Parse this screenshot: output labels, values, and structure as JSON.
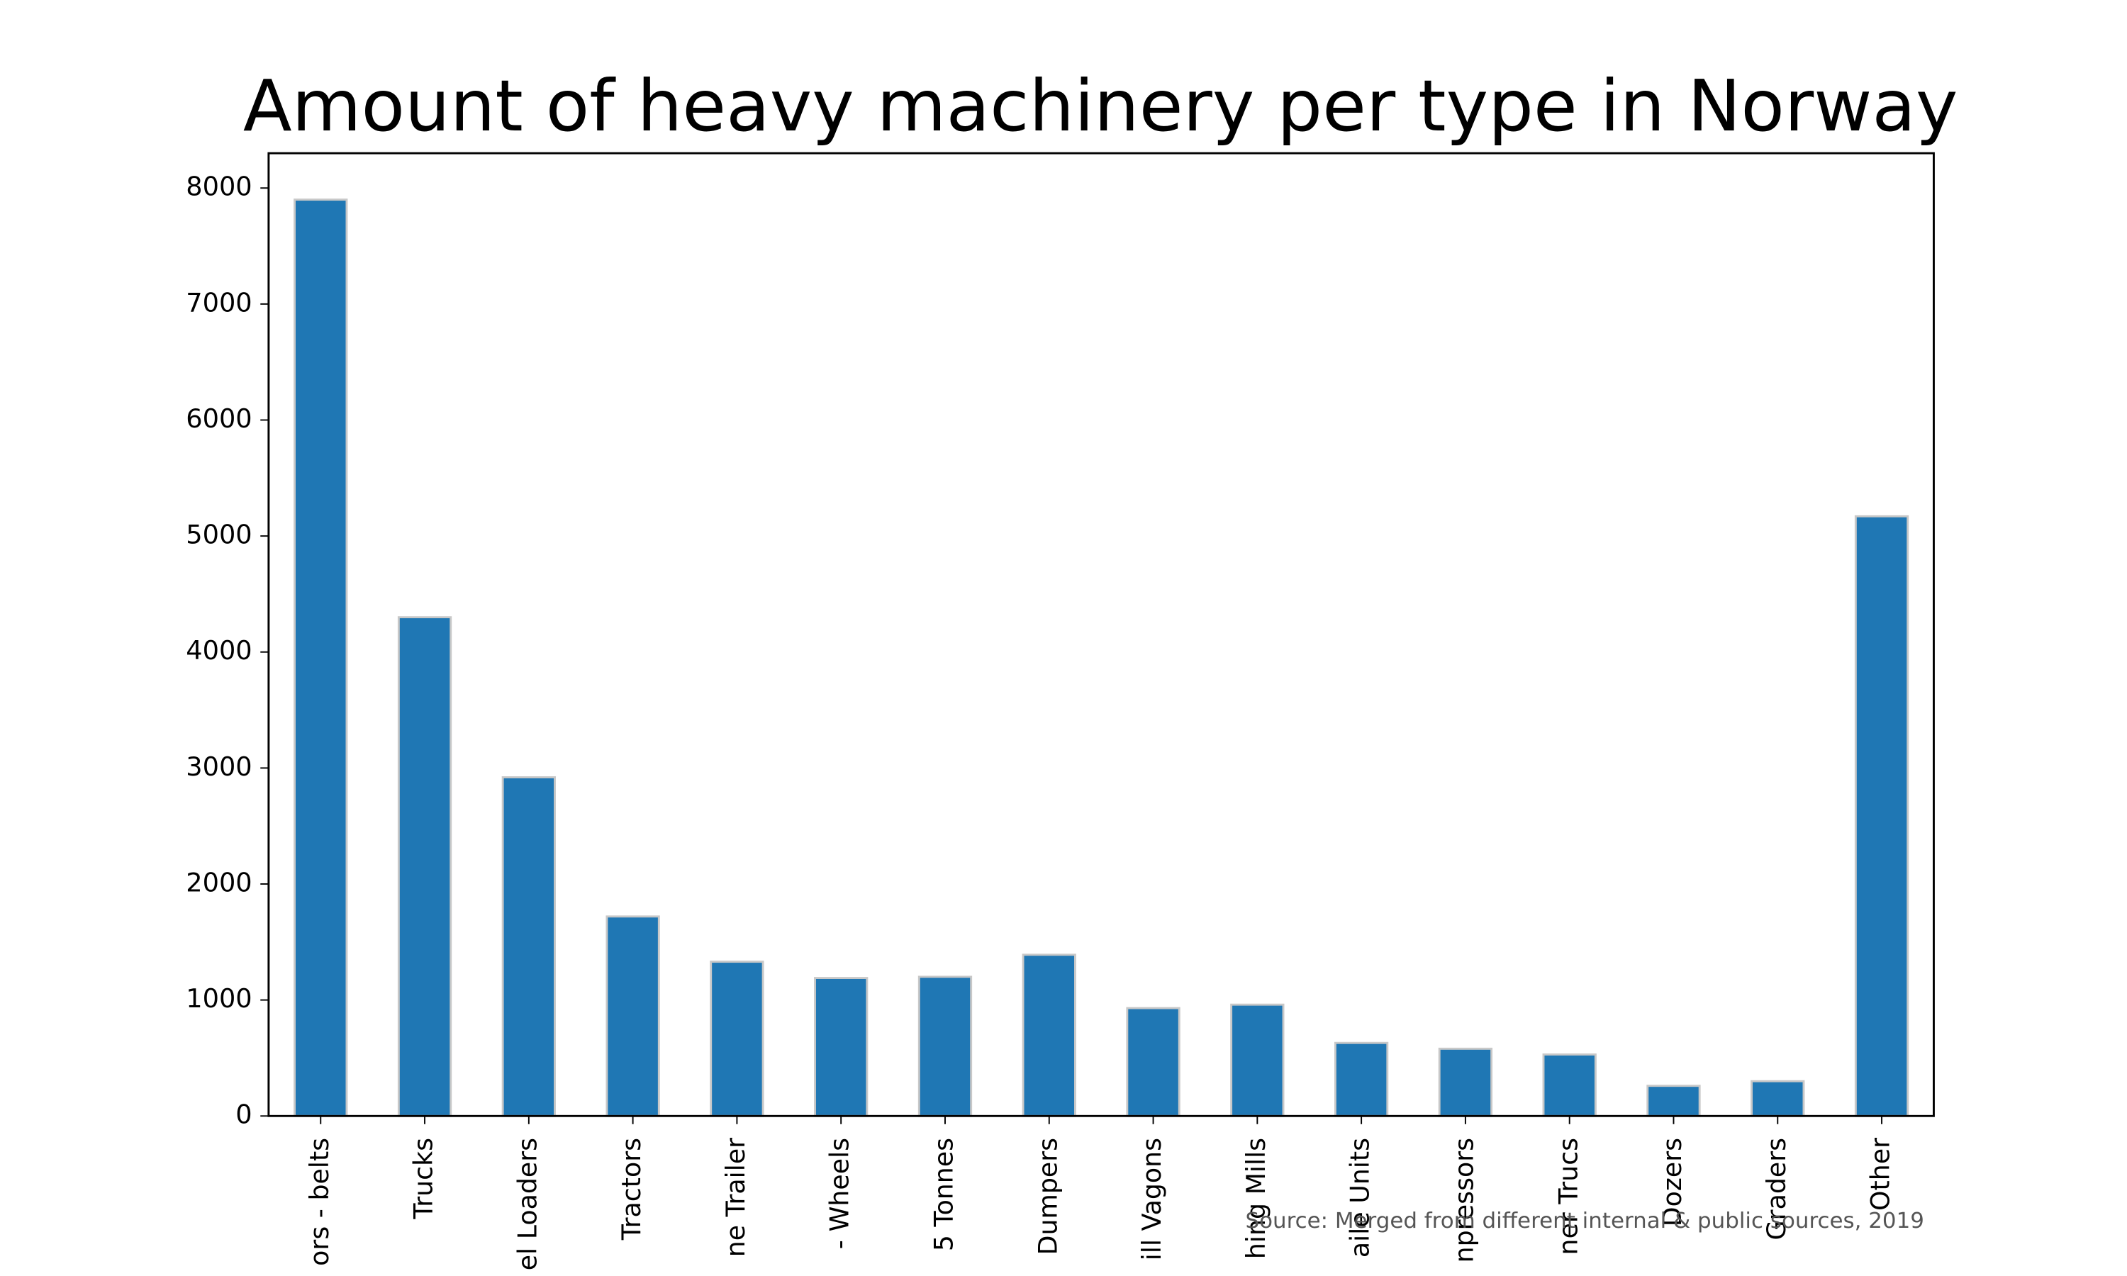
{
  "chart_data": {
    "type": "bar",
    "title": "Amount of heavy machinery per type in Norway",
    "categories": [
      "ors - belts",
      "Trucks",
      "el Loaders",
      "Tractors",
      "ne Trailer",
      "- Wheels",
      "5 Tonnes",
      "Dumpers",
      "ill Vagons",
      "hing Mills",
      "aile Units",
      "npressors",
      "ner Trucs",
      "Dozers",
      "Graders",
      "Other"
    ],
    "values": [
      7900,
      4300,
      2920,
      1720,
      1330,
      1190,
      1200,
      1390,
      930,
      960,
      630,
      580,
      530,
      260,
      300,
      5170
    ],
    "color": "#1f77b4",
    "ylim": [
      0,
      8300
    ],
    "yticks": [
      0,
      1000,
      2000,
      3000,
      4000,
      5000,
      6000,
      7000,
      8000
    ],
    "grid": false,
    "annotation": "Source: Merged from different internal & public sources, 2019"
  }
}
